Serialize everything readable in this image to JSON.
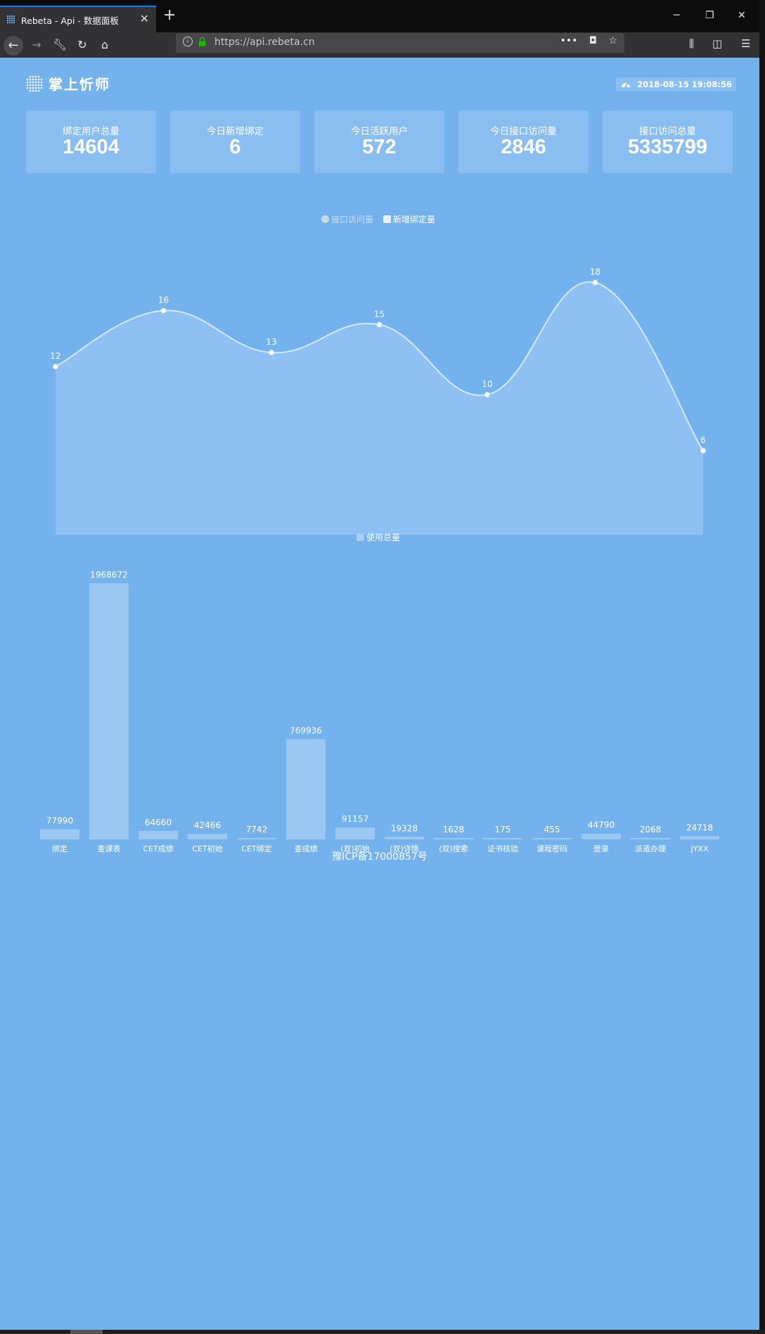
{
  "browser": {
    "tab_title": "Rebeta - Api - 数据面板",
    "url": "https://api.rebeta.cn",
    "page_actions_icon": "ellipsis-icon",
    "pocket_icon": "pocket-icon",
    "bookmark_icon": "star-icon",
    "library_icon": "library-icon",
    "sidebar_icon": "sidebar-icon",
    "menu_icon": "hamburger-menu-icon"
  },
  "header": {
    "logo_text": "掌上忻师",
    "datetime": "2018-08-15 19:08:56"
  },
  "stats": [
    {
      "label": "绑定用户总量",
      "value": "14604"
    },
    {
      "label": "今日新增绑定",
      "value": "6"
    },
    {
      "label": "今日活跃用户",
      "value": "572"
    },
    {
      "label": "今日接口访问量",
      "value": "2846"
    },
    {
      "label": "接口访问总量",
      "value": "5335799"
    }
  ],
  "colors": {
    "page_bg": "#74b2ee",
    "card_bg": "rgba(255,255,255,0.16)",
    "line": "#d6e9fb",
    "area": "#8fc1f2",
    "bar": "#9ac8f3"
  },
  "chart_data": [
    {
      "type": "area",
      "legend": [
        "接口访问量",
        "新增绑定量"
      ],
      "legend_placement": "top-center",
      "series": [
        {
          "name": "新增绑定量",
          "values": [
            12,
            16,
            13,
            15,
            10,
            18,
            6
          ]
        }
      ],
      "ylim": [
        0,
        22
      ],
      "smooth": true,
      "grid": false
    },
    {
      "type": "bar",
      "legend": [
        "使用总量"
      ],
      "legend_placement": "top-center",
      "categories": [
        "绑定",
        "查课表",
        "CET成绩",
        "CET初始",
        "CET绑定",
        "查成绩",
        "(双)初始",
        "(双)详情",
        "(双)搜索",
        "证书核验",
        "课程密码",
        "登录",
        "派遣办理",
        "JYXX"
      ],
      "series": [
        {
          "name": "使用总量",
          "values": [
            77990,
            1968672,
            64660,
            42466,
            7742,
            769936,
            91157,
            19328,
            1628,
            175,
            455,
            44790,
            2068,
            24718
          ]
        }
      ],
      "ylim": [
        0,
        2000000
      ],
      "grid": false
    }
  ],
  "footer": {
    "icp": "豫ICP备17000857号"
  }
}
